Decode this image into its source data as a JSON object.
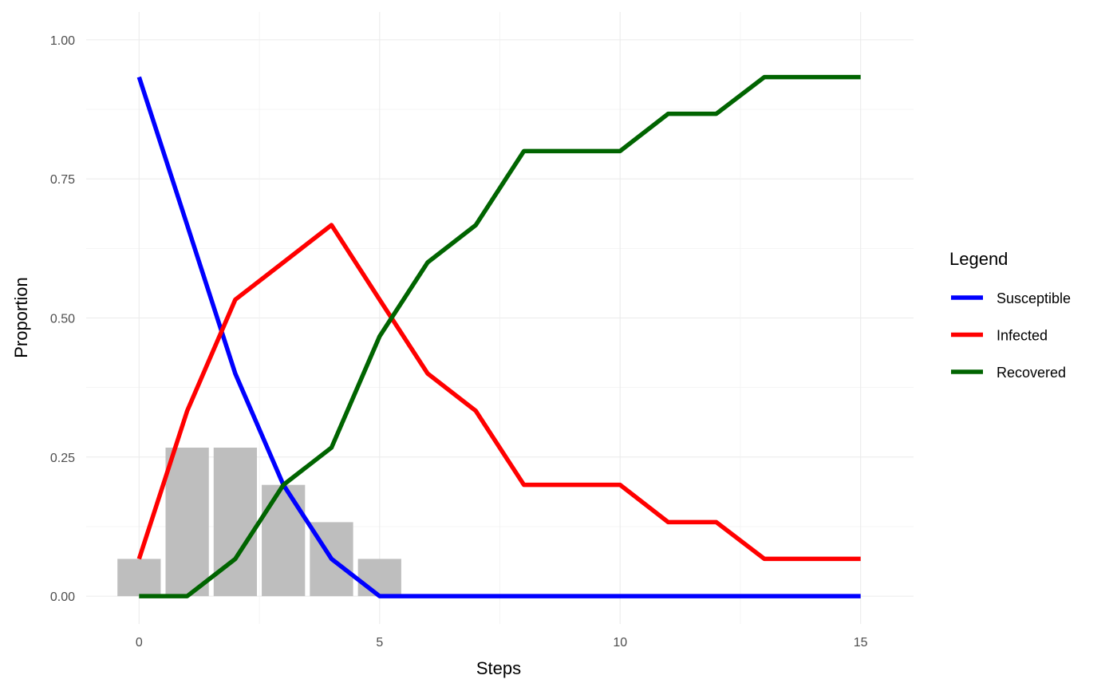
{
  "chart_data": {
    "type": "line",
    "xlabel": "Steps",
    "ylabel": "Proportion",
    "xlim": [
      -1.1,
      16.1
    ],
    "ylim": [
      -0.05,
      1.05
    ],
    "x_ticks": [
      0,
      5,
      10,
      15
    ],
    "x_tick_labels": [
      "0",
      "5",
      "10",
      "15"
    ],
    "y_ticks": [
      0,
      0.25,
      0.5,
      0.75,
      1
    ],
    "y_tick_labels": [
      "0.00",
      "0.25",
      "0.50",
      "0.75",
      "1.00"
    ],
    "grid": true,
    "legend": {
      "title": "Legend",
      "position": "right"
    },
    "x": [
      0,
      1,
      2,
      3,
      4,
      5,
      6,
      7,
      8,
      9,
      10,
      11,
      12,
      13,
      14,
      15
    ],
    "series": [
      {
        "name": "Susceptible",
        "color": "#0000ff",
        "values": [
          0.933,
          0.667,
          0.4,
          0.2,
          0.067,
          0,
          0,
          0,
          0,
          0,
          0,
          0,
          0,
          0,
          0,
          0
        ]
      },
      {
        "name": "Infected",
        "color": "#ff0000",
        "values": [
          0.067,
          0.333,
          0.533,
          0.6,
          0.667,
          0.533,
          0.4,
          0.333,
          0.2,
          0.2,
          0.2,
          0.133,
          0.133,
          0.067,
          0.067,
          0.067
        ]
      },
      {
        "name": "Recovered",
        "color": "#006400",
        "values": [
          0,
          0,
          0.067,
          0.2,
          0.267,
          0.467,
          0.6,
          0.667,
          0.8,
          0.8,
          0.8,
          0.867,
          0.867,
          0.933,
          0.933,
          0.933
        ]
      }
    ],
    "bars": {
      "color": "#bebebe",
      "x": [
        0,
        1,
        2,
        3,
        4,
        5
      ],
      "values": [
        0.067,
        0.267,
        0.267,
        0.2,
        0.133,
        0.067
      ]
    }
  }
}
